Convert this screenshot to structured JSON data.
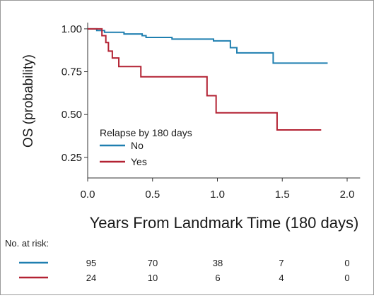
{
  "chart_data": {
    "type": "line",
    "subtype": "kaplan-meier-step",
    "title": "",
    "xlabel": "Years From Landmark Time (180 days)",
    "ylabel": "OS (probability)",
    "xlim": [
      0,
      2.1
    ],
    "ylim": [
      0.13,
      1.02
    ],
    "x_ticks": [
      "0.0",
      "0.5",
      "1.0",
      "1.5",
      "2.0"
    ],
    "x_tick_values": [
      0,
      0.5,
      1.0,
      1.5,
      2.0
    ],
    "y_ticks": [
      "1.00",
      "0.75",
      "0.50",
      "0.25"
    ],
    "y_tick_values": [
      1.0,
      0.75,
      0.5,
      0.25
    ],
    "grid": false,
    "legend": {
      "title": "Relapse by 180 days",
      "placement": "bottom-left inside plot"
    },
    "series": [
      {
        "name": "No",
        "color": "#1f7fb0",
        "points": [
          [
            0,
            1.0
          ],
          [
            0.07,
            0.99
          ],
          [
            0.13,
            0.98
          ],
          [
            0.28,
            0.97
          ],
          [
            0.42,
            0.96
          ],
          [
            0.45,
            0.95
          ],
          [
            0.65,
            0.94
          ],
          [
            0.97,
            0.93
          ],
          [
            1.1,
            0.89
          ],
          [
            1.15,
            0.86
          ],
          [
            1.43,
            0.8
          ],
          [
            1.85,
            0.8
          ]
        ]
      },
      {
        "name": "Yes",
        "color": "#b32233",
        "points": [
          [
            0,
            1.0
          ],
          [
            0.11,
            0.96
          ],
          [
            0.14,
            0.92
          ],
          [
            0.16,
            0.87
          ],
          [
            0.19,
            0.83
          ],
          [
            0.24,
            0.78
          ],
          [
            0.41,
            0.72
          ],
          [
            0.92,
            0.61
          ],
          [
            0.99,
            0.51
          ],
          [
            1.46,
            0.41
          ],
          [
            1.8,
            0.41
          ]
        ]
      }
    ],
    "risk_table": {
      "label": "No. at risk:",
      "rows": [
        {
          "color": "#1f7fb0",
          "values": [
            "95",
            "70",
            "38",
            "7",
            "0"
          ]
        },
        {
          "color": "#b32233",
          "values": [
            "24",
            "10",
            "6",
            "4",
            "0"
          ]
        }
      ]
    }
  }
}
